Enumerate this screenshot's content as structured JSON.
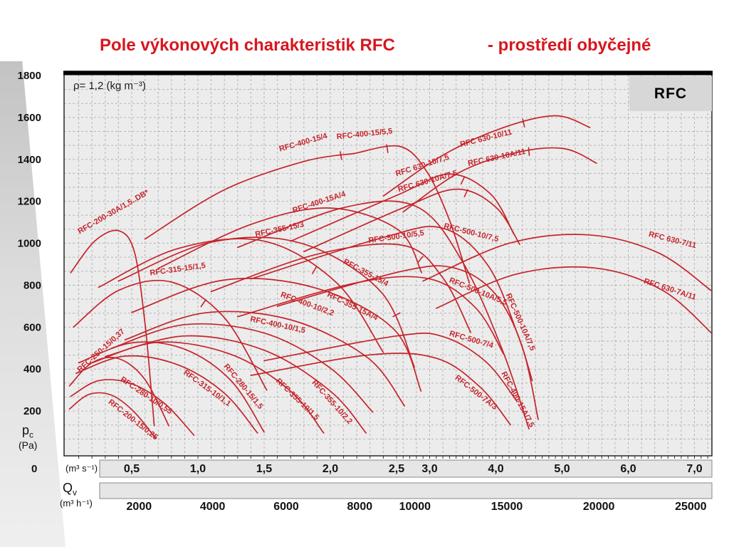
{
  "title": {
    "main": "Pole výkonových charakteristik RFC",
    "suffix": "- prostředí obyčejné"
  },
  "badge_label": "RFC",
  "density_note": "ρ= 1,2 (kg m⁻³)",
  "axes": {
    "pressure": {
      "symbol": "p",
      "symbol_sub": "c",
      "unit": "(Pa)",
      "zero_label": "0"
    },
    "flow_m3s": {
      "unit": "(m³ s⁻¹)"
    },
    "flow_m3h": {
      "symbol": "Q",
      "symbol_sub": "v",
      "unit": "(m³ h⁻¹)"
    }
  },
  "chart_data": {
    "type": "line",
    "title": "Pole výkonových charakteristik RFC - prostředí obyčejné",
    "ylabel": "pc (Pa)",
    "xlabel": "Qv (m³ s⁻¹ / m³ h⁻¹)",
    "ylim": [
      0,
      1800
    ],
    "x_scale": {
      "unit": "m³/s",
      "linear_until": 2.5,
      "compression_beyond": 2,
      "max_visible": 7.26
    },
    "grid": "fine dashed grid",
    "legend_position": "labels rotated along curves",
    "colors": {
      "curve": "#c5242b",
      "plot_bg": "#ececec",
      "grid": "#b5b5b5",
      "band_bg": "#e6e6e6",
      "accent_title": "#d6171f"
    },
    "y_ticks": [
      {
        "value": 1800,
        "label": "1800"
      },
      {
        "value": 1600,
        "label": "1600"
      },
      {
        "value": 1400,
        "label": "1400"
      },
      {
        "value": 1200,
        "label": "1200"
      },
      {
        "value": 1000,
        "label": "1000"
      },
      {
        "value": 800,
        "label": "800"
      },
      {
        "value": 600,
        "label": "600"
      },
      {
        "value": 400,
        "label": "400"
      },
      {
        "value": 200,
        "label": "200"
      }
    ],
    "x_ticks_m3s": [
      {
        "value": 0.5,
        "label": "0,5"
      },
      {
        "value": 1,
        "label": "1,0"
      },
      {
        "value": 1.5,
        "label": "1,5"
      },
      {
        "value": 2,
        "label": "2,0"
      },
      {
        "value": 2.5,
        "label": "2,5"
      },
      {
        "value": 3,
        "label": "3,0"
      },
      {
        "value": 4,
        "label": "4,0"
      },
      {
        "value": 5,
        "label": "5,0"
      },
      {
        "value": 6,
        "label": "6,0"
      },
      {
        "value": 7,
        "label": "7,0"
      }
    ],
    "x_ticks_m3h": [
      {
        "value": 2000,
        "label": "2000"
      },
      {
        "value": 4000,
        "label": "4000"
      },
      {
        "value": 6000,
        "label": "6000"
      },
      {
        "value": 8000,
        "label": "8000"
      },
      {
        "value": 10000,
        "label": "10000"
      },
      {
        "value": 15000,
        "label": "15000"
      },
      {
        "value": 20000,
        "label": "20000"
      },
      {
        "value": 25000,
        "label": "25000"
      }
    ],
    "series": [
      {
        "name": "RFC-200-15/0,25",
        "points": [
          [
            0.03,
            210
          ],
          [
            0.18,
            280
          ],
          [
            0.35,
            275
          ],
          [
            0.52,
            195
          ],
          [
            0.68,
            70
          ]
        ],
        "label_at": [
          0.5,
          150
        ],
        "label_angle": 38
      },
      {
        "name": "RFC-280-10/0,55",
        "points": [
          [
            0.04,
            270
          ],
          [
            0.25,
            345
          ],
          [
            0.5,
            330
          ],
          [
            0.75,
            235
          ],
          [
            0.97,
            85
          ]
        ],
        "label_at": [
          0.6,
          265
        ],
        "label_angle": 34
      },
      {
        "name": "RFC-250-15/0,37",
        "points": [
          [
            0.03,
            320
          ],
          [
            0.2,
            430
          ],
          [
            0.4,
            450
          ],
          [
            0.6,
            350
          ],
          [
            0.78,
            130
          ]
        ],
        "label_at": [
          0.28,
          480
        ],
        "label_angle": -42
      },
      {
        "name": "RFC-200-30A/1,5..DB*",
        "points": [
          [
            0.04,
            860
          ],
          [
            0.22,
            1010
          ],
          [
            0.4,
            1060
          ],
          [
            0.52,
            960
          ],
          [
            0.6,
            620
          ],
          [
            0.65,
            280
          ],
          [
            0.67,
            130
          ]
        ],
        "label_at": [
          0.37,
          1140
        ],
        "label_angle": -30
      },
      {
        "name": "RFC-315-10/1,1",
        "points": [
          [
            0.08,
            380
          ],
          [
            0.45,
            462
          ],
          [
            0.85,
            420
          ],
          [
            1.2,
            285
          ],
          [
            1.45,
            95
          ]
        ],
        "label_at": [
          1.06,
          300
        ],
        "label_angle": 36
      },
      {
        "name": "RFC-280-15/1,5",
        "points": [
          [
            0.1,
            430
          ],
          [
            0.5,
            525
          ],
          [
            0.9,
            495
          ],
          [
            1.25,
            345
          ],
          [
            1.5,
            100
          ]
        ],
        "label_at": [
          1.33,
          310
        ],
        "label_angle": 50
      },
      {
        "name": "RFC-355-10/1,5",
        "points": [
          [
            0.2,
            430
          ],
          [
            0.7,
            528
          ],
          [
            1.25,
            470
          ],
          [
            1.7,
            295
          ],
          [
            1.95,
            95
          ]
        ],
        "label_at": [
          1.74,
          248
        ],
        "label_angle": 44
      },
      {
        "name": "RFC-355-10/2,2",
        "points": [
          [
            0.3,
            460
          ],
          [
            0.9,
            558
          ],
          [
            1.5,
            490
          ],
          [
            2.0,
            295
          ],
          [
            2.27,
            95
          ]
        ],
        "label_at": [
          2.0,
          235
        ],
        "label_angle": 48
      },
      {
        "name": "RFC-315-15/1,5",
        "points": [
          [
            0.06,
            600
          ],
          [
            0.4,
            775
          ],
          [
            0.8,
            815
          ],
          [
            1.2,
            645
          ],
          [
            1.52,
            300
          ]
        ],
        "label_at": [
          0.85,
          865
        ],
        "label_angle": -8,
        "tick_at": 1.04
      },
      {
        "name": "RFC-400-10/1,5",
        "points": [
          [
            0.35,
            500
          ],
          [
            0.9,
            612
          ],
          [
            1.5,
            572
          ],
          [
            2.0,
            405
          ],
          [
            2.32,
            195
          ]
        ],
        "label_at": [
          1.6,
          600
        ],
        "label_angle": 12
      },
      {
        "name": "RFC-400-10/2,2",
        "points": [
          [
            0.45,
            540
          ],
          [
            1.05,
            668
          ],
          [
            1.7,
            635
          ],
          [
            2.28,
            455
          ],
          [
            2.62,
            225
          ]
        ],
        "label_at": [
          1.82,
          700
        ],
        "label_angle": 20
      },
      {
        "name": "RFC-355-15/3",
        "points": [
          [
            0.25,
            790
          ],
          [
            0.85,
            975
          ],
          [
            1.5,
            1010
          ],
          [
            2.05,
            810
          ],
          [
            2.4,
            480
          ]
        ],
        "label_at": [
          1.62,
          1055
        ],
        "label_angle": -12,
        "tick_at": 1.88
      },
      {
        "name": "RFC-355-15/4",
        "points": [
          [
            0.4,
            820
          ],
          [
            1.1,
            1005
          ],
          [
            1.78,
            1000
          ],
          [
            2.38,
            770
          ],
          [
            2.77,
            410
          ]
        ],
        "label_at": [
          2.26,
          850
        ],
        "label_angle": 28,
        "tick_at": 2.5
      },
      {
        "name": "RFC-355-15A/4",
        "points": [
          [
            0.5,
            670
          ],
          [
            1.2,
            825
          ],
          [
            1.9,
            785
          ],
          [
            2.48,
            590
          ],
          [
            2.87,
            295
          ]
        ],
        "label_at": [
          2.16,
          690
        ],
        "label_angle": 26
      },
      {
        "name": "RFC-400-15/4",
        "points": [
          [
            0.6,
            1020
          ],
          [
            1.2,
            1255
          ],
          [
            1.8,
            1390
          ],
          [
            2.18,
            1428
          ]
        ],
        "label_at": [
          1.8,
          1470
        ],
        "label_angle": -16,
        "tick_at": 2.08
      },
      {
        "name": "RFC-400-15/5,5",
        "points": [
          [
            2.18,
            1428
          ],
          [
            2.55,
            1462
          ],
          [
            2.95,
            1345
          ],
          [
            3.3,
            1110
          ],
          [
            3.6,
            810
          ]
        ],
        "label_at": [
          2.26,
          1510
        ],
        "label_angle": -6,
        "tick_at": 2.43
      },
      {
        "name": "RFC-400-15A/4",
        "points": [
          [
            0.7,
            880
          ],
          [
            1.4,
            1090
          ],
          [
            2.0,
            1168
          ],
          [
            2.52,
            1065
          ],
          [
            2.88,
            860
          ]
        ],
        "label_at": [
          1.92,
          1185
        ],
        "label_angle": -18
      },
      {
        "name": "RFC-400-15A/7,5",
        "points": [
          [
            1.3,
            980
          ],
          [
            2.1,
            1170
          ],
          [
            2.8,
            1175
          ],
          [
            3.5,
            910
          ],
          [
            4.1,
            490
          ],
          [
            4.5,
            115
          ]
        ],
        "label_at": [
          4.3,
          250
        ],
        "label_angle": 62
      },
      {
        "name": "RFC-500-10/5,5",
        "points": [
          [
            1.1,
            770
          ],
          [
            1.9,
            948
          ],
          [
            2.6,
            990
          ],
          [
            3.2,
            835
          ],
          [
            3.62,
            575
          ]
        ],
        "label_at": [
          2.5,
          1020
        ],
        "label_angle": -8,
        "tick_at": 2.86
      },
      {
        "name": "RFC-500-10/7,5",
        "points": [
          [
            1.4,
            830
          ],
          [
            2.4,
            1028
          ],
          [
            3.2,
            1072
          ],
          [
            3.88,
            895
          ],
          [
            4.33,
            565
          ],
          [
            4.55,
            345
          ]
        ],
        "label_at": [
          3.62,
          1040
        ],
        "label_angle": 14
      },
      {
        "name": "RFC-500-10A/5,5",
        "points": [
          [
            1.3,
            650
          ],
          [
            2.2,
            812
          ],
          [
            3.0,
            830
          ],
          [
            3.7,
            690
          ],
          [
            4.12,
            470
          ]
        ],
        "label_at": [
          3.72,
          760
        ],
        "label_angle": 22
      },
      {
        "name": "RFC-500-10A/7,5",
        "points": [
          [
            1.6,
            700
          ],
          [
            2.6,
            868
          ],
          [
            3.4,
            880
          ],
          [
            4.0,
            755
          ],
          [
            4.4,
            505
          ],
          [
            4.64,
            160
          ]
        ],
        "label_at": [
          4.34,
          620
        ],
        "label_angle": 66
      },
      {
        "name": "RFC-500-7/4",
        "points": [
          [
            1.5,
            440
          ],
          [
            2.5,
            558
          ],
          [
            3.2,
            555
          ],
          [
            3.85,
            435
          ],
          [
            4.32,
            245
          ]
        ],
        "label_at": [
          3.62,
          530
        ],
        "label_angle": 16
      },
      {
        "name": "RFC-500-7A/3",
        "points": [
          [
            1.4,
            370
          ],
          [
            2.3,
            468
          ],
          [
            3.1,
            452
          ],
          [
            3.76,
            315
          ],
          [
            4.22,
            135
          ]
        ],
        "label_at": [
          3.68,
          280
        ],
        "label_angle": 38
      },
      {
        "name": "RFC 630-10/7,5",
        "points": [
          [
            1.7,
            1010
          ],
          [
            2.5,
            1228
          ],
          [
            3.3,
            1330
          ],
          [
            3.92,
            1235
          ],
          [
            4.27,
            1045
          ]
        ],
        "label_at": [
          2.9,
          1360
        ],
        "label_angle": -18,
        "tick_at": 3.5
      },
      {
        "name": "RFC 630-10/11",
        "points": [
          [
            2.4,
            1225
          ],
          [
            3.2,
            1420
          ],
          [
            4.1,
            1550
          ],
          [
            4.9,
            1608
          ],
          [
            5.42,
            1552
          ]
        ],
        "label_at": [
          3.86,
          1490
        ],
        "label_angle": -14,
        "tick_at": 4.42
      },
      {
        "name": "RFC 630-10A/11",
        "points": [
          [
            2.6,
            1150
          ],
          [
            3.45,
            1338
          ],
          [
            4.3,
            1432
          ],
          [
            5.02,
            1452
          ],
          [
            5.52,
            1382
          ]
        ],
        "label_at": [
          4.02,
          1398
        ],
        "label_angle": -12,
        "tick_at": 4.5
      },
      {
        "name": "RFC 630-10A/7,5",
        "points": [
          [
            1.8,
            960
          ],
          [
            2.62,
            1172
          ],
          [
            3.42,
            1258
          ],
          [
            4.0,
            1172
          ],
          [
            4.36,
            995
          ]
        ],
        "label_at": [
          2.98,
          1285
        ],
        "label_angle": -16,
        "tick_at": 3.55
      },
      {
        "name": "RFC 630-7/11",
        "points": [
          [
            2.9,
            820
          ],
          [
            4.2,
            1000
          ],
          [
            5.4,
            1040
          ],
          [
            6.45,
            955
          ],
          [
            7.25,
            775
          ]
        ],
        "label_at": [
          6.66,
          1005
        ],
        "label_angle": 14
      },
      {
        "name": "RFC 630-7A/11",
        "points": [
          [
            3.1,
            690
          ],
          [
            4.3,
            852
          ],
          [
            5.5,
            882
          ],
          [
            6.52,
            775
          ],
          [
            7.28,
            565
          ]
        ],
        "label_at": [
          6.62,
          770
        ],
        "label_angle": 18
      }
    ]
  }
}
